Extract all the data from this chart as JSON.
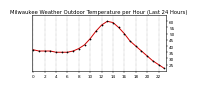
{
  "title": "Milwaukee Weather Outdoor Temperature per Hour (Last 24 Hours)",
  "hours": [
    0,
    1,
    2,
    3,
    4,
    5,
    6,
    7,
    8,
    9,
    10,
    11,
    12,
    13,
    14,
    15,
    16,
    17,
    18,
    19,
    20,
    21,
    22,
    23
  ],
  "temps": [
    37,
    36,
    36,
    36,
    35,
    35,
    35,
    36,
    38,
    41,
    46,
    52,
    57,
    60,
    59,
    55,
    50,
    44,
    40,
    36,
    32,
    28,
    25,
    22
  ],
  "line_color": "#cc0000",
  "marker_color": "#000000",
  "bg_color": "#ffffff",
  "grid_color": "#888888",
  "ylim": [
    20,
    65
  ],
  "ytick_values": [
    25,
    30,
    35,
    40,
    45,
    50,
    55,
    60
  ],
  "xtick_positions": [
    0,
    2,
    4,
    6,
    8,
    10,
    12,
    14,
    16,
    18,
    20,
    22
  ],
  "title_fontsize": 3.8,
  "tick_fontsize": 3.0,
  "line_width": 0.7,
  "marker_size": 1.8
}
